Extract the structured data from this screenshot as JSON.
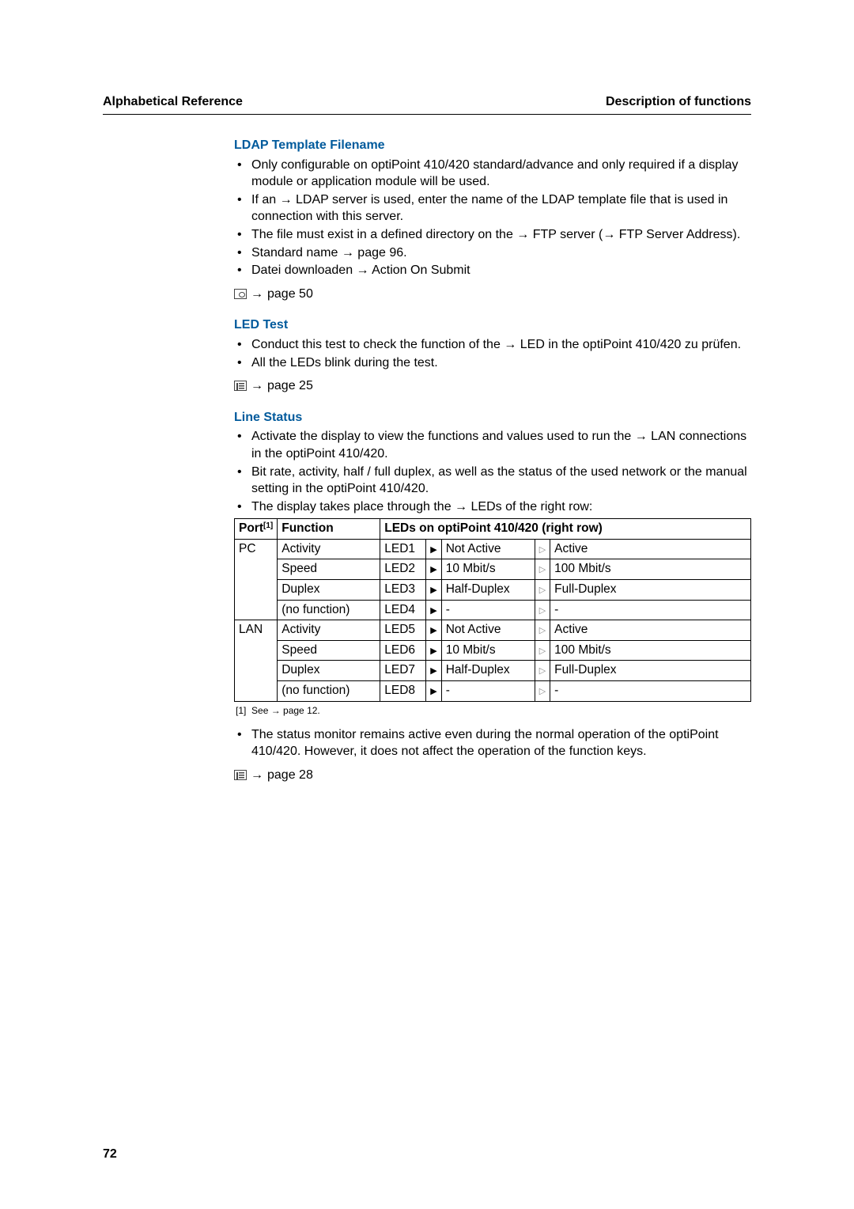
{
  "header": {
    "left": "Alphabetical Reference",
    "right": "Description of functions"
  },
  "page_number": "72",
  "icons": {
    "arrow": "→",
    "tri_dark": "▶",
    "tri_light": "▷"
  },
  "ldap": {
    "title": "LDAP Template Filename",
    "b1": "Only configurable on optiPoint 410/420 standard/advance and only required if a display module or application module will be used.",
    "b2a": "If an ",
    "b2b": " LDAP server is used, enter the name of the LDAP template file that is used in connection with this server.",
    "b3a": "The file must exist in a defined directory on the ",
    "b3b": " FTP server (",
    "b3c": " FTP Server Address).",
    "b4a": "Standard name ",
    "b4b": " page 96.",
    "b5a": "Datei downloaden ",
    "b5b": " Action On Submit",
    "link": " page 50"
  },
  "led": {
    "title": "LED Test",
    "b1a": "Conduct this test to check the function of the ",
    "b1b": " LED in the optiPoint 410/420 zu prüfen.",
    "b2": "All the LEDs blink during the test.",
    "link": " page 25"
  },
  "line": {
    "title": "Line Status",
    "b1a": "Activate the display to view the functions and values used to run the ",
    "b1b": " LAN connections in the optiPoint 410/420.",
    "b2": "Bit rate, activity, half / full duplex, as well as the status of the used network or the manual setting in the optiPoint 410/420.",
    "b3a": "The display takes place through the ",
    "b3b": " LEDs of the right row:",
    "table": {
      "h_port": "Port",
      "h_port_sup": "[1]",
      "h_function": "Function",
      "h_leds": "LEDs on optiPoint 410/420 (right row)",
      "groups": [
        {
          "port": "PC",
          "rows": [
            {
              "func": "Activity",
              "led": "LED1",
              "off": "Not Active",
              "on": "Active"
            },
            {
              "func": "Speed",
              "led": "LED2",
              "off": "10 Mbit/s",
              "on": "100 Mbit/s"
            },
            {
              "func": "Duplex",
              "led": "LED3",
              "off": "Half-Duplex",
              "on": "Full-Duplex"
            },
            {
              "func": "(no function)",
              "led": "LED4",
              "off": "-",
              "on": "-"
            }
          ]
        },
        {
          "port": "LAN",
          "rows": [
            {
              "func": "Activity",
              "led": "LED5",
              "off": "Not Active",
              "on": "Active"
            },
            {
              "func": "Speed",
              "led": "LED6",
              "off": "10 Mbit/s",
              "on": "100 Mbit/s"
            },
            {
              "func": "Duplex",
              "led": "LED7",
              "off": "Half-Duplex",
              "on": "Full-Duplex"
            },
            {
              "func": "(no function)",
              "led": "LED8",
              "off": "-",
              "on": "-"
            }
          ]
        }
      ]
    },
    "footnote_ref": "[1]",
    "footnote_a": "See ",
    "footnote_b": " page 12.",
    "post": "The status monitor remains active even during the normal operation of the optiPoint 410/420. However, it does not affect the operation of the function keys.",
    "link": " page 28"
  },
  "col_widths": {
    "port": "44px",
    "func": "130px",
    "led": "58px",
    "tri": "18px",
    "off": "118px",
    "tri2": "18px",
    "on": "auto"
  }
}
